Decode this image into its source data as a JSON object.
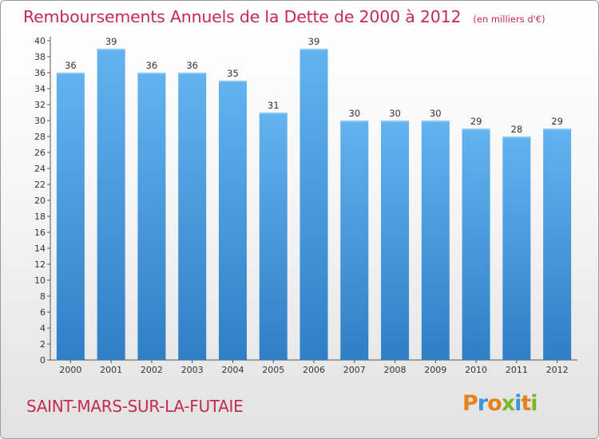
{
  "chart_data": {
    "type": "bar",
    "title": "Remboursements Annuels de la Dette de 2000 à 2012",
    "unit": "(en milliers d'€)",
    "categories": [
      "2000",
      "2001",
      "2002",
      "2003",
      "2004",
      "2005",
      "2006",
      "2007",
      "2008",
      "2009",
      "2010",
      "2011",
      "2012"
    ],
    "values": [
      36,
      39,
      36,
      36,
      35,
      31,
      39,
      30,
      30,
      30,
      29,
      28,
      29
    ],
    "ylim": [
      0,
      40
    ],
    "yticks": [
      0,
      2,
      4,
      6,
      8,
      10,
      12,
      14,
      16,
      18,
      20,
      22,
      24,
      26,
      28,
      30,
      32,
      34,
      36,
      38,
      40
    ],
    "xlabel": "",
    "ylabel": "",
    "grid": false,
    "bar_color": "#4a9ee0",
    "bar_color_light": "#62b3ef",
    "bar_color_dark": "#2f7fc6"
  },
  "footer": {
    "town": "SAINT-MARS-SUR-LA-FUTAIE",
    "logo_letters": [
      {
        "ch": "P",
        "color": "#e8801b"
      },
      {
        "ch": "r",
        "color": "#3e95cf"
      },
      {
        "ch": "o",
        "color": "#e8801b"
      },
      {
        "ch": "x",
        "color": "#79b829"
      },
      {
        "ch": "i",
        "color": "#3e95cf"
      },
      {
        "ch": "t",
        "color": "#e8801b"
      },
      {
        "ch": "i",
        "color": "#79b829"
      }
    ]
  }
}
